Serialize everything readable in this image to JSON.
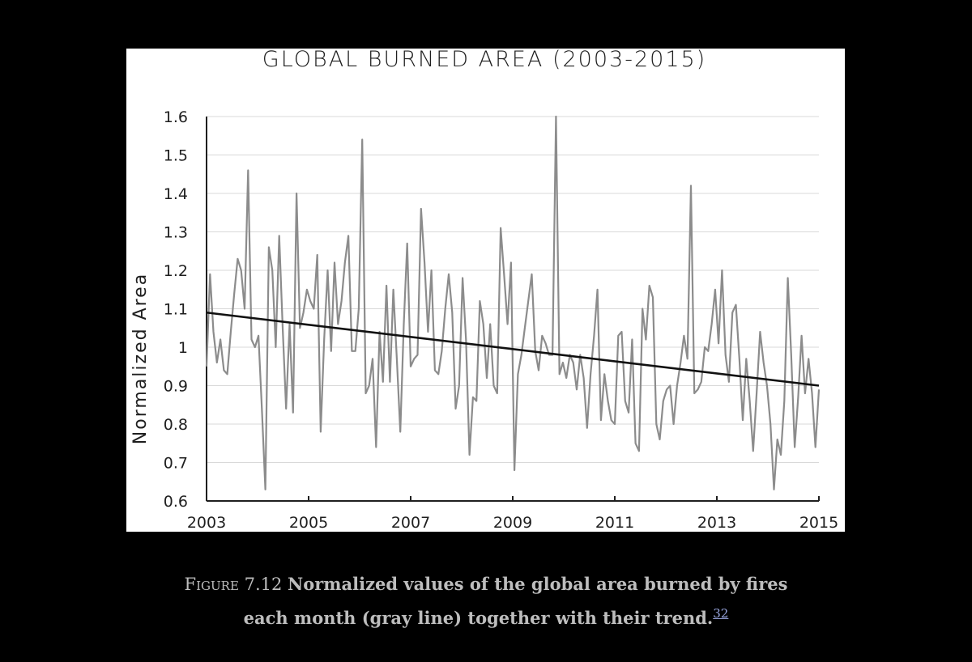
{
  "colors": {
    "background": "#000000",
    "panel": "#ffffff",
    "series_line": "#8c8c8c",
    "trend_line": "#111111",
    "gridline": "#d9d9d9",
    "caption_text": "#bdbdbd",
    "footnote_link": "#9aa7e0"
  },
  "caption": {
    "figure_label": "Figure 7.12",
    "text_line1": "Normalized values of the global area burned by fires",
    "text_line2": "each month (gray line) together with their trend.",
    "footnote": "32"
  },
  "chart_data": {
    "type": "line",
    "title": "GLOBAL BURNED AREA (2003-2015)",
    "xlabel": "",
    "ylabel": "Normalized Area",
    "xlim": [
      2003,
      2015
    ],
    "ylim": [
      0.6,
      1.6
    ],
    "x_ticks": [
      "2003",
      "2005",
      "2007",
      "2009",
      "2011",
      "2013",
      "2015"
    ],
    "y_ticks": [
      "0.6",
      "0.7",
      "0.8",
      "0.9",
      "1",
      "1.1",
      "1.2",
      "1.3",
      "1.4",
      "1.5",
      "1.6"
    ],
    "grid": "horizontal",
    "series": [
      {
        "values": [
          0.95,
          1.19,
          1.04,
          0.96,
          1.02,
          0.94,
          0.93,
          1.04,
          1.14,
          1.23,
          1.2,
          1.1,
          1.46,
          1.02,
          1.0,
          1.03,
          0.84,
          0.63,
          1.26,
          1.2,
          1.0,
          1.29,
          1.05,
          0.84,
          1.06,
          0.83,
          1.4,
          1.05,
          1.09,
          1.15,
          1.12,
          1.1,
          1.24,
          0.78,
          1.02,
          1.2,
          0.99,
          1.22,
          1.06,
          1.12,
          1.22,
          1.29,
          0.99,
          0.99,
          1.1,
          1.54,
          0.88,
          0.9,
          0.97,
          0.74,
          1.04,
          0.91,
          1.16,
          0.91,
          1.15,
          0.97,
          0.78,
          1.06,
          1.27,
          0.95,
          0.97,
          0.98,
          1.36,
          1.22,
          1.04,
          1.2,
          0.94,
          0.93,
          0.99,
          1.1,
          1.19,
          1.09,
          0.84,
          0.9,
          1.18,
          1.02,
          0.72,
          0.87,
          0.86,
          1.12,
          1.06,
          0.92,
          1.06,
          0.9,
          0.88,
          1.31,
          1.19,
          1.06,
          1.22,
          0.68,
          0.93,
          0.98,
          1.05,
          1.12,
          1.19,
          0.99,
          0.94,
          1.03,
          1.01,
          0.98,
          0.98,
          1.6,
          0.93,
          0.96,
          0.92,
          0.98,
          0.96,
          0.89,
          0.98,
          0.92,
          0.79,
          0.93,
          1.03,
          1.15,
          0.81,
          0.93,
          0.86,
          0.81,
          0.8,
          1.03,
          1.04,
          0.86,
          0.83,
          1.02,
          0.75,
          0.73,
          1.1,
          1.02,
          1.16,
          1.13,
          0.8,
          0.76,
          0.86,
          0.89,
          0.9,
          0.8,
          0.9,
          0.96,
          1.03,
          0.97,
          1.42,
          0.88,
          0.89,
          0.91,
          1.0,
          0.99,
          1.06,
          1.15,
          1.01,
          1.2,
          0.98,
          0.91,
          1.09,
          1.11,
          0.97,
          0.81,
          0.97,
          0.86,
          0.73,
          0.88,
          1.04,
          0.96,
          0.9,
          0.8,
          0.63,
          0.76,
          0.72,
          0.86,
          1.18,
          0.98,
          0.74,
          0.87,
          1.03,
          0.88,
          0.97,
          0.88,
          0.74,
          0.89
        ]
      }
    ],
    "trend": {
      "start": [
        2003,
        1.09
      ],
      "end": [
        2015,
        0.9
      ]
    }
  }
}
